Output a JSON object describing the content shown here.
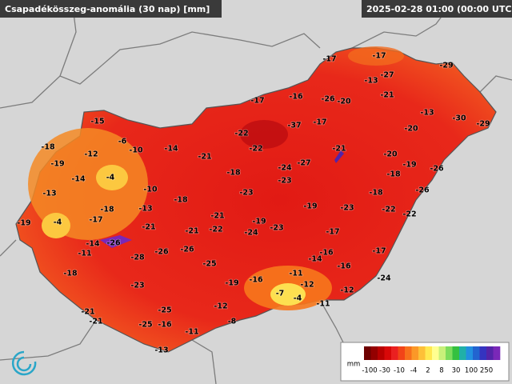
{
  "header": {
    "title": "Csapadékösszeg-anomália (30 nap) [mm]",
    "timestamp": "2025-02-28 01:00 (00:00 UTC)"
  },
  "stations": [
    -17,
    -17,
    -29,
    -13,
    -27,
    -21,
    -17,
    -16,
    -26,
    -20,
    -13,
    -30,
    -29,
    -15,
    -37,
    -17,
    -20,
    -22,
    -6,
    -18,
    -12,
    -10,
    -14,
    -22,
    -21,
    -20,
    -21,
    -19,
    -27,
    -19,
    -24,
    -26,
    -18,
    -18,
    -14,
    -4,
    -23,
    -13,
    -10,
    -23,
    -18,
    -26,
    -18,
    -19,
    -23,
    -22,
    -18,
    -13,
    -21,
    -22,
    -19,
    -4,
    -17,
    -21,
    -19,
    -23,
    -21,
    -22,
    -24,
    -17,
    -14,
    -26,
    -11,
    -26,
    -26,
    -16,
    -17,
    -14,
    -28,
    -25,
    -16,
    -18,
    -11,
    -24,
    -19,
    -16,
    -23,
    -12,
    -7,
    -4,
    -12,
    -12,
    -25,
    -11,
    -21,
    -8,
    -21,
    -25,
    -16,
    -11,
    -13
  ],
  "legend": {
    "unit": "mm",
    "labels": [
      "-100",
      "-30",
      "-10",
      "-4",
      "2",
      "8",
      "30",
      "100",
      "250"
    ],
    "colors": [
      "#6e0000",
      "#940000",
      "#b80000",
      "#d80808",
      "#ea2020",
      "#f24418",
      "#f7701c",
      "#fb9828",
      "#fdc038",
      "#ffe850",
      "#ffff90",
      "#c8f07a",
      "#7cdc5c",
      "#34c040",
      "#20b0a8",
      "#2290e0",
      "#2264d0",
      "#3434c0",
      "#5424a8",
      "#7a28b8"
    ]
  }
}
